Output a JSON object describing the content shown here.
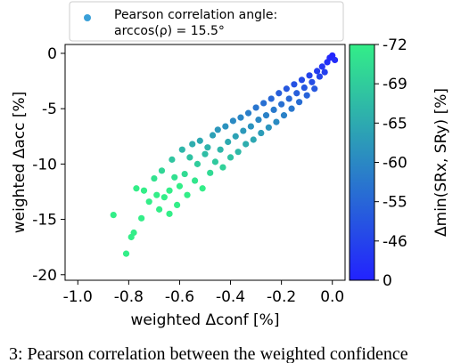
{
  "chart_data": {
    "type": "scatter",
    "xlabel": "weighted Δconf [%]",
    "ylabel": "weighted Δacc [%]",
    "xlim": [
      -1.05,
      0.05
    ],
    "ylim": [
      -20.5,
      0.8
    ],
    "xticks": [
      -1.0,
      -0.8,
      -0.6,
      -0.4,
      -0.2,
      0.0
    ],
    "xtick_labels": [
      "-1.0",
      "-0.8",
      "-0.6",
      "-0.4",
      "-0.2",
      "0.0"
    ],
    "yticks": [
      0,
      -5,
      -10,
      -15,
      -20
    ],
    "ytick_labels": [
      "0",
      "-5",
      "-10",
      "-15",
      "-20"
    ],
    "legend": {
      "position": "top",
      "line1": "Pearson correlation angle:",
      "line2": "arccos(ρ) = 15.5°"
    },
    "colorbar": {
      "label": "Δmin(SRx, SRy) [%]",
      "tick_labels": [
        "-72",
        "-69",
        "-65",
        "-60",
        "-55",
        "-46",
        "0"
      ],
      "color_top": "#33ee88",
      "color_bottom": "#2222ff"
    },
    "grid": false,
    "series": [
      {
        "values_note": "",
        "points": [
          {
            "x": -0.86,
            "y": -14.6
          },
          {
            "x": -0.81,
            "y": -18.1
          },
          {
            "x": -0.79,
            "y": -16.6
          },
          {
            "x": -0.78,
            "y": -16.2
          },
          {
            "x": -0.75,
            "y": -14.9
          },
          {
            "x": -0.74,
            "y": -12.4
          },
          {
            "x": -0.77,
            "y": -12.2
          },
          {
            "x": -0.72,
            "y": -13.4
          },
          {
            "x": -0.7,
            "y": -11.3
          },
          {
            "x": -0.69,
            "y": -12.8
          },
          {
            "x": -0.67,
            "y": -10.6
          },
          {
            "x": -0.68,
            "y": -14.1
          },
          {
            "x": -0.66,
            "y": -13.0
          },
          {
            "x": -0.64,
            "y": -12.4
          },
          {
            "x": -0.64,
            "y": -14.5
          },
          {
            "x": -0.62,
            "y": -11.2
          },
          {
            "x": -0.63,
            "y": -9.6
          },
          {
            "x": -0.61,
            "y": -13.7
          },
          {
            "x": -0.6,
            "y": -12.0
          },
          {
            "x": -0.59,
            "y": -8.7
          },
          {
            "x": -0.58,
            "y": -10.9
          },
          {
            "x": -0.57,
            "y": -12.8
          },
          {
            "x": -0.56,
            "y": -9.4
          },
          {
            "x": -0.55,
            "y": -8.2
          },
          {
            "x": -0.54,
            "y": -11.5
          },
          {
            "x": -0.53,
            "y": -10.0
          },
          {
            "x": -0.52,
            "y": -7.9
          },
          {
            "x": -0.51,
            "y": -12.2
          },
          {
            "x": -0.5,
            "y": -9.1
          },
          {
            "x": -0.49,
            "y": -8.5
          },
          {
            "x": -0.48,
            "y": -10.8
          },
          {
            "x": -0.47,
            "y": -7.4
          },
          {
            "x": -0.46,
            "y": -9.8
          },
          {
            "x": -0.45,
            "y": -6.9
          },
          {
            "x": -0.44,
            "y": -8.7
          },
          {
            "x": -0.43,
            "y": -10.3
          },
          {
            "x": -0.42,
            "y": -6.6
          },
          {
            "x": -0.41,
            "y": -8.0
          },
          {
            "x": -0.4,
            "y": -9.4
          },
          {
            "x": -0.39,
            "y": -6.1
          },
          {
            "x": -0.38,
            "y": -7.5
          },
          {
            "x": -0.37,
            "y": -8.9
          },
          {
            "x": -0.36,
            "y": -5.8
          },
          {
            "x": -0.35,
            "y": -7.0
          },
          {
            "x": -0.34,
            "y": -8.2
          },
          {
            "x": -0.33,
            "y": -5.4
          },
          {
            "x": -0.32,
            "y": -6.6
          },
          {
            "x": -0.31,
            "y": -7.8
          },
          {
            "x": -0.3,
            "y": -4.9
          },
          {
            "x": -0.29,
            "y": -6.0
          },
          {
            "x": -0.28,
            "y": -7.2
          },
          {
            "x": -0.27,
            "y": -4.5
          },
          {
            "x": -0.26,
            "y": -5.6
          },
          {
            "x": -0.25,
            "y": -6.7
          },
          {
            "x": -0.24,
            "y": -4.1
          },
          {
            "x": -0.23,
            "y": -5.1
          },
          {
            "x": -0.22,
            "y": -6.2
          },
          {
            "x": -0.21,
            "y": -3.6
          },
          {
            "x": -0.2,
            "y": -4.6
          },
          {
            "x": -0.19,
            "y": -5.6
          },
          {
            "x": -0.18,
            "y": -3.2
          },
          {
            "x": -0.17,
            "y": -4.1
          },
          {
            "x": -0.16,
            "y": -5.0
          },
          {
            "x": -0.15,
            "y": -2.8
          },
          {
            "x": -0.14,
            "y": -3.6
          },
          {
            "x": -0.13,
            "y": -4.4
          },
          {
            "x": -0.12,
            "y": -2.4
          },
          {
            "x": -0.11,
            "y": -3.1
          },
          {
            "x": -0.1,
            "y": -3.8
          },
          {
            "x": -0.09,
            "y": -2.0
          },
          {
            "x": -0.08,
            "y": -2.6
          },
          {
            "x": -0.07,
            "y": -3.2
          },
          {
            "x": -0.06,
            "y": -1.6
          },
          {
            "x": -0.05,
            "y": -2.1
          },
          {
            "x": -0.04,
            "y": -1.2
          },
          {
            "x": -0.03,
            "y": -1.7
          },
          {
            "x": -0.02,
            "y": -0.8
          },
          {
            "x": -0.01,
            "y": -0.4
          },
          {
            "x": 0.0,
            "y": -0.2
          },
          {
            "x": 0.01,
            "y": -0.6
          }
        ]
      }
    ]
  },
  "caption_text": "3: Pearson correlation between the weighted confidence"
}
